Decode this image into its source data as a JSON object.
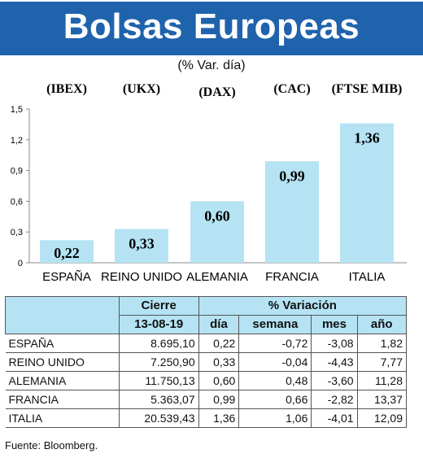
{
  "header": {
    "title": "Bolsas Europeas",
    "subtitle": "(% Var. día)"
  },
  "chart_data": {
    "type": "bar",
    "categories": [
      "ESPAÑA",
      "REINO UNIDO",
      "ALEMANIA",
      "FRANCIA",
      "ITALIA"
    ],
    "tickers": [
      "(IBEX)",
      "(UKX)",
      "(DAX)",
      "(CAC)",
      "(FTSE MIB)"
    ],
    "values": [
      0.22,
      0.33,
      0.6,
      0.99,
      1.36
    ],
    "value_labels": [
      "0,22",
      "0,33",
      "0,60",
      "0,99",
      "1,36"
    ],
    "ylim": [
      0,
      1.5
    ],
    "yticks": [
      0,
      0.3,
      0.6,
      0.9,
      1.2,
      1.5
    ],
    "ytick_labels": [
      "0",
      "0,3",
      "0,6",
      "0,9",
      "1,2",
      "1,5"
    ],
    "bar_color": "#b5e3f4",
    "grid": false
  },
  "table": {
    "header1": {
      "cierre": "Cierre",
      "variacion": "% Variación"
    },
    "header2": {
      "fecha": "13-08-19",
      "dia": "día",
      "semana": "semana",
      "mes": "mes",
      "ano": "año"
    },
    "rows": [
      {
        "country": "ESPAÑA",
        "cierre": "8.695,10",
        "dia": "0,22",
        "semana": "-0,72",
        "mes": "-3,08",
        "ano": "1,82"
      },
      {
        "country": "REINO UNIDO",
        "cierre": "7.250,90",
        "dia": "0,33",
        "semana": "-0,04",
        "mes": "-4,43",
        "ano": "7,77"
      },
      {
        "country": "ALEMANIA",
        "cierre": "11.750,13",
        "dia": "0,60",
        "semana": "0,48",
        "mes": "-3,60",
        "ano": "11,28"
      },
      {
        "country": "FRANCIA",
        "cierre": "5.363,07",
        "dia": "0,99",
        "semana": "0,66",
        "mes": "-2,82",
        "ano": "13,37"
      },
      {
        "country": "ITALIA",
        "cierre": "20.539,43",
        "dia": "1,36",
        "semana": "1,06",
        "mes": "-4,01",
        "ano": "12,09"
      }
    ]
  },
  "colors": {
    "title_bg": "#1f63ad",
    "header_bg": "#b5e3f4"
  },
  "source": "Fuente: Bloomberg."
}
